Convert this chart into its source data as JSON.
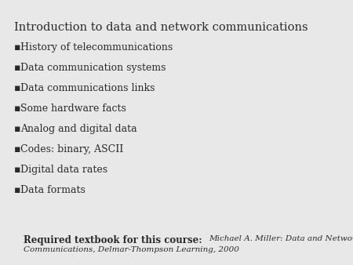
{
  "title": "Introduction to data and network communications",
  "bullet_items": [
    "History of telecommunications",
    "Data communication systems",
    "Data communications links",
    "Some hardware facts",
    "Analog and digital data",
    "Codes: binary, ASCII",
    "Digital data rates",
    "Data formats"
  ],
  "required_label": "Required textbook for this course:  ",
  "required_italic_line1": "Michael A. Miller: Data and Network",
  "required_italic_line2": "Communications, Delmar-Thompson Learning, 2000",
  "background_color": "#e8e8e8",
  "text_color": "#2a2a2a",
  "title_fontsize": 10.5,
  "bullet_fontsize": 9.0,
  "footer_bold_fontsize": 8.5,
  "footer_italic_fontsize": 7.5,
  "bullet_char": "▪"
}
